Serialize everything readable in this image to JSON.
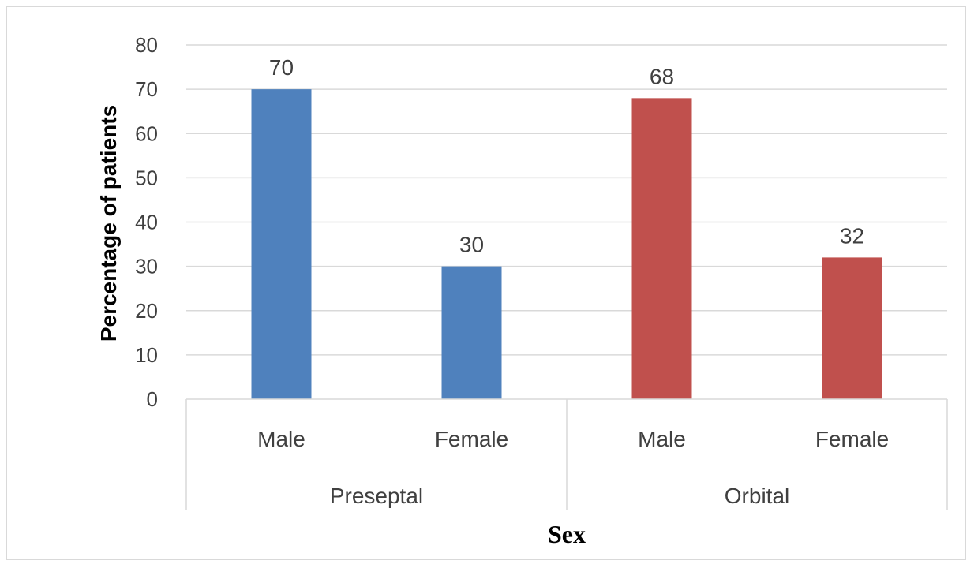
{
  "chart_data": {
    "type": "bar",
    "xlabel": "Sex",
    "ylabel": "Percentage of patients",
    "ylim": [
      0,
      80
    ],
    "y_ticks": [
      0,
      10,
      20,
      30,
      40,
      50,
      60,
      70,
      80
    ],
    "grid": "horizontal",
    "data_labels": true,
    "groups": [
      {
        "name": "Preseptal",
        "color": "#4f81bd",
        "bars": [
          {
            "category": "Male",
            "value": 70
          },
          {
            "category": "Female",
            "value": 30
          }
        ]
      },
      {
        "name": "Orbital",
        "color": "#c0504d",
        "bars": [
          {
            "category": "Male",
            "value": 68
          },
          {
            "category": "Female",
            "value": 32
          }
        ]
      }
    ]
  }
}
